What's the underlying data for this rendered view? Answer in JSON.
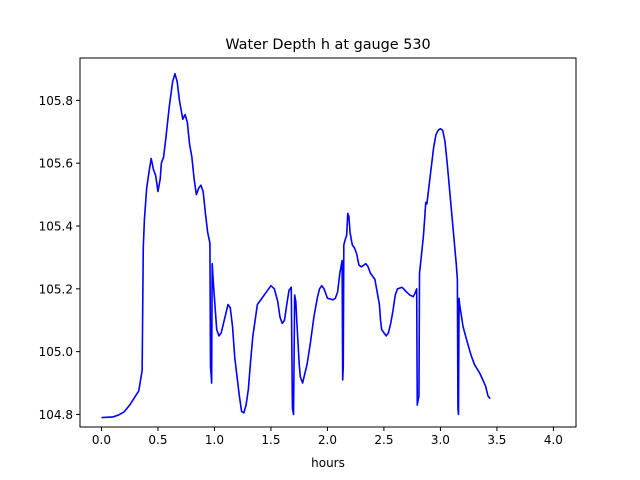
{
  "chart_data": {
    "type": "line",
    "title": "Water Depth h at gauge 530",
    "xlabel": "hours",
    "ylabel": "",
    "xlim": [
      -0.19,
      4.2
    ],
    "ylim": [
      104.76,
      105.935
    ],
    "xticks": [
      0.0,
      0.5,
      1.0,
      1.5,
      2.0,
      2.5,
      3.0,
      3.5,
      4.0
    ],
    "xtick_labels": [
      "0.0",
      "0.5",
      "1.0",
      "1.5",
      "2.0",
      "2.5",
      "3.0",
      "3.5",
      "4.0"
    ],
    "yticks": [
      104.8,
      105.0,
      105.2,
      105.4,
      105.6,
      105.8
    ],
    "ytick_labels": [
      "104.8",
      "105.0",
      "105.2",
      "105.4",
      "105.6",
      "105.8"
    ],
    "grid": false,
    "legend": "none",
    "series": [
      {
        "color": "#0000ff",
        "points": [
          [
            0.0,
            104.79
          ],
          [
            0.1,
            104.792
          ],
          [
            0.15,
            104.798
          ],
          [
            0.2,
            104.808
          ],
          [
            0.25,
            104.83
          ],
          [
            0.3,
            104.858
          ],
          [
            0.33,
            104.875
          ],
          [
            0.36,
            104.94
          ],
          [
            0.37,
            105.33
          ],
          [
            0.38,
            105.42
          ],
          [
            0.4,
            105.52
          ],
          [
            0.42,
            105.57
          ],
          [
            0.44,
            105.615
          ],
          [
            0.46,
            105.58
          ],
          [
            0.48,
            105.56
          ],
          [
            0.5,
            105.51
          ],
          [
            0.52,
            105.55
          ],
          [
            0.53,
            105.6
          ],
          [
            0.55,
            105.62
          ],
          [
            0.57,
            105.68
          ],
          [
            0.6,
            105.78
          ],
          [
            0.63,
            105.86
          ],
          [
            0.65,
            105.885
          ],
          [
            0.67,
            105.86
          ],
          [
            0.69,
            105.8
          ],
          [
            0.72,
            105.74
          ],
          [
            0.74,
            105.755
          ],
          [
            0.76,
            105.73
          ],
          [
            0.78,
            105.66
          ],
          [
            0.8,
            105.62
          ],
          [
            0.82,
            105.55
          ],
          [
            0.84,
            105.5
          ],
          [
            0.86,
            105.52
          ],
          [
            0.88,
            105.53
          ],
          [
            0.9,
            105.51
          ],
          [
            0.92,
            105.44
          ],
          [
            0.94,
            105.38
          ],
          [
            0.96,
            105.345
          ],
          [
            0.965,
            104.95
          ],
          [
            0.97,
            104.93
          ],
          [
            0.975,
            104.9
          ],
          [
            0.98,
            105.28
          ],
          [
            0.99,
            105.22
          ],
          [
            1.0,
            105.17
          ],
          [
            1.02,
            105.07
          ],
          [
            1.04,
            105.05
          ],
          [
            1.06,
            105.06
          ],
          [
            1.08,
            105.09
          ],
          [
            1.1,
            105.12
          ],
          [
            1.12,
            105.15
          ],
          [
            1.14,
            105.14
          ],
          [
            1.16,
            105.08
          ],
          [
            1.18,
            104.98
          ],
          [
            1.2,
            104.92
          ],
          [
            1.22,
            104.86
          ],
          [
            1.24,
            104.81
          ],
          [
            1.26,
            104.805
          ],
          [
            1.28,
            104.83
          ],
          [
            1.3,
            104.88
          ],
          [
            1.32,
            104.97
          ],
          [
            1.34,
            105.05
          ],
          [
            1.36,
            105.1
          ],
          [
            1.38,
            105.15
          ],
          [
            1.42,
            105.17
          ],
          [
            1.46,
            105.19
          ],
          [
            1.5,
            105.21
          ],
          [
            1.53,
            105.2
          ],
          [
            1.56,
            105.16
          ],
          [
            1.58,
            105.11
          ],
          [
            1.6,
            105.09
          ],
          [
            1.62,
            105.1
          ],
          [
            1.64,
            105.15
          ],
          [
            1.66,
            105.195
          ],
          [
            1.68,
            105.205
          ],
          [
            1.69,
            104.82
          ],
          [
            1.7,
            104.8
          ],
          [
            1.71,
            105.18
          ],
          [
            1.72,
            105.16
          ],
          [
            1.73,
            105.09
          ],
          [
            1.75,
            104.96
          ],
          [
            1.76,
            104.92
          ],
          [
            1.78,
            104.9
          ],
          [
            1.8,
            104.93
          ],
          [
            1.82,
            104.96
          ],
          [
            1.85,
            105.03
          ],
          [
            1.88,
            105.11
          ],
          [
            1.91,
            105.17
          ],
          [
            1.93,
            105.2
          ],
          [
            1.95,
            105.21
          ],
          [
            1.97,
            105.2
          ],
          [
            1.99,
            105.18
          ],
          [
            2.0,
            105.17
          ],
          [
            2.05,
            105.165
          ],
          [
            2.07,
            105.17
          ],
          [
            2.09,
            105.19
          ],
          [
            2.11,
            105.25
          ],
          [
            2.13,
            105.29
          ],
          [
            2.135,
            104.91
          ],
          [
            2.14,
            104.95
          ],
          [
            2.145,
            105.34
          ],
          [
            2.16,
            105.36
          ],
          [
            2.17,
            105.37
          ],
          [
            2.18,
            105.44
          ],
          [
            2.19,
            105.43
          ],
          [
            2.2,
            105.38
          ],
          [
            2.22,
            105.34
          ],
          [
            2.24,
            105.33
          ],
          [
            2.26,
            105.31
          ],
          [
            2.27,
            105.29
          ],
          [
            2.28,
            105.275
          ],
          [
            2.3,
            105.27
          ],
          [
            2.32,
            105.275
          ],
          [
            2.34,
            105.28
          ],
          [
            2.36,
            105.27
          ],
          [
            2.38,
            105.25
          ],
          [
            2.4,
            105.24
          ],
          [
            2.42,
            105.23
          ],
          [
            2.44,
            105.19
          ],
          [
            2.46,
            105.15
          ],
          [
            2.47,
            105.1
          ],
          [
            2.48,
            105.07
          ],
          [
            2.5,
            105.06
          ],
          [
            2.52,
            105.05
          ],
          [
            2.54,
            105.06
          ],
          [
            2.56,
            105.09
          ],
          [
            2.58,
            105.13
          ],
          [
            2.6,
            105.18
          ],
          [
            2.62,
            105.2
          ],
          [
            2.66,
            105.205
          ],
          [
            2.7,
            105.19
          ],
          [
            2.73,
            105.18
          ],
          [
            2.76,
            105.175
          ],
          [
            2.78,
            105.19
          ],
          [
            2.79,
            105.2
          ],
          [
            2.795,
            104.83
          ],
          [
            2.8,
            104.84
          ],
          [
            2.81,
            104.86
          ],
          [
            2.815,
            105.25
          ],
          [
            2.83,
            105.3
          ],
          [
            2.85,
            105.37
          ],
          [
            2.86,
            105.42
          ],
          [
            2.87,
            105.475
          ],
          [
            2.88,
            105.47
          ],
          [
            2.9,
            105.53
          ],
          [
            2.92,
            105.59
          ],
          [
            2.94,
            105.65
          ],
          [
            2.96,
            105.69
          ],
          [
            2.98,
            105.705
          ],
          [
            3.0,
            105.71
          ],
          [
            3.02,
            105.705
          ],
          [
            3.04,
            105.67
          ],
          [
            3.06,
            105.6
          ],
          [
            3.08,
            105.52
          ],
          [
            3.1,
            105.44
          ],
          [
            3.12,
            105.36
          ],
          [
            3.14,
            105.28
          ],
          [
            3.15,
            105.23
          ],
          [
            3.155,
            104.82
          ],
          [
            3.16,
            104.8
          ],
          [
            3.165,
            105.17
          ],
          [
            3.17,
            105.15
          ],
          [
            3.2,
            105.08
          ],
          [
            3.23,
            105.04
          ],
          [
            3.27,
            104.99
          ],
          [
            3.3,
            104.96
          ],
          [
            3.35,
            104.93
          ],
          [
            3.4,
            104.89
          ],
          [
            3.42,
            104.86
          ],
          [
            3.44,
            104.85
          ]
        ]
      }
    ]
  }
}
